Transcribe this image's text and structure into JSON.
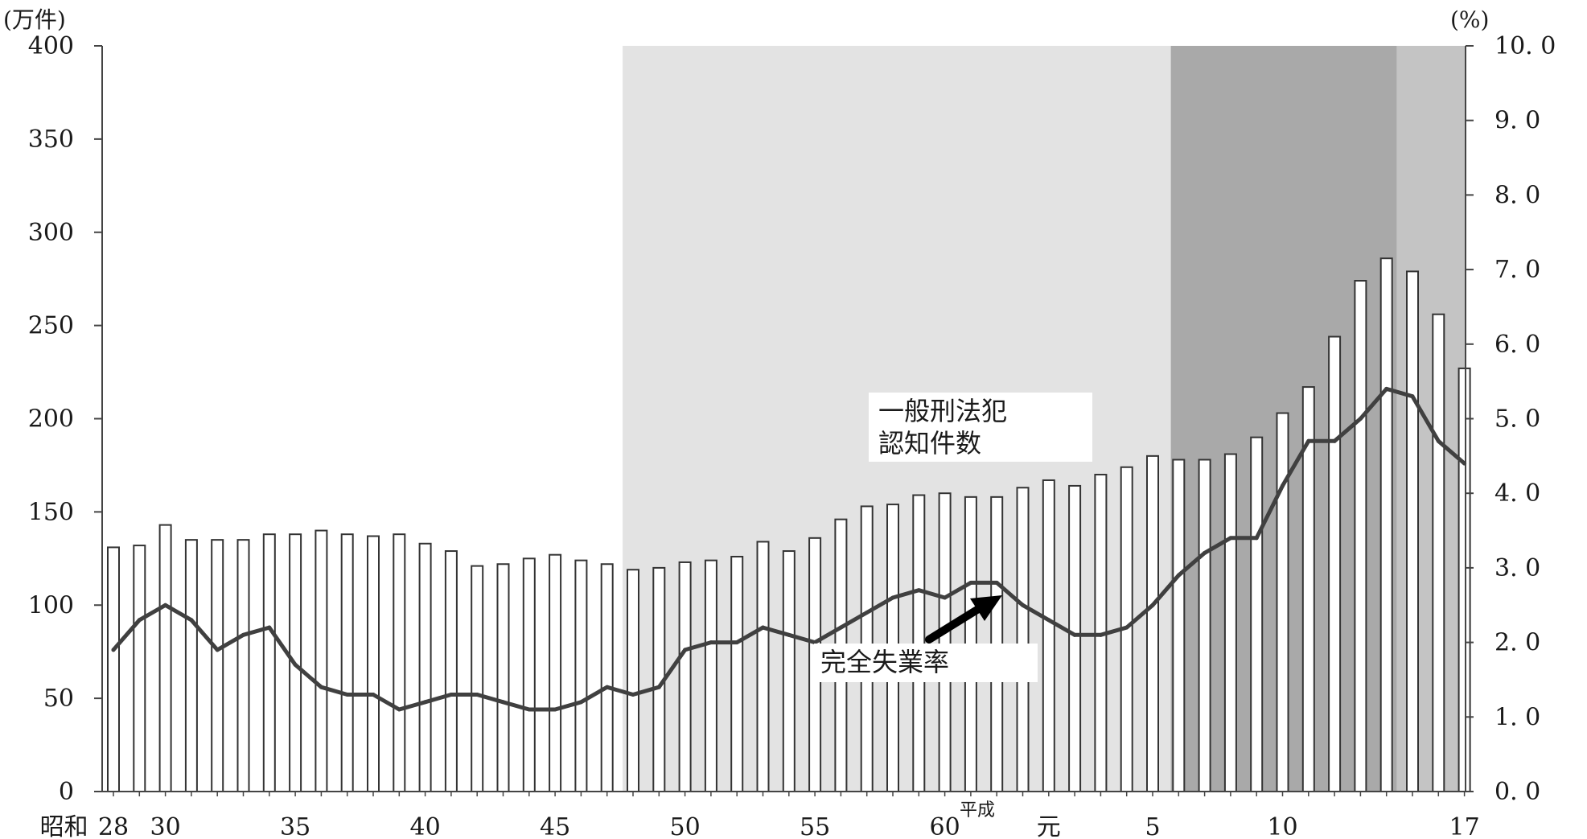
{
  "chart_data": {
    "type": "bar",
    "left_axis": {
      "unit": "(万件)",
      "range": [
        0,
        400
      ],
      "ticks": [
        "0",
        "50",
        "100",
        "150",
        "200",
        "250",
        "300",
        "350",
        "400"
      ]
    },
    "right_axis": {
      "unit": "(%)",
      "range": [
        0,
        10
      ],
      "ticks": [
        "0. 0",
        "1. 0",
        "2. 0",
        "3. 0",
        "4. 0",
        "5. 0",
        "6. 0",
        "7. 0",
        "8. 0",
        "9. 0",
        "10. 0"
      ]
    },
    "x_labels": [
      {
        "text": "昭和",
        "index": -1.9
      },
      {
        "text": "28",
        "index": 0
      },
      {
        "text": "30",
        "index": 2
      },
      {
        "text": "35",
        "index": 7
      },
      {
        "text": "40",
        "index": 12
      },
      {
        "text": "45",
        "index": 17
      },
      {
        "text": "50",
        "index": 22
      },
      {
        "text": "55",
        "index": 27
      },
      {
        "text": "60",
        "index": 32
      },
      {
        "text": "平成",
        "index": 33.25,
        "small": true
      },
      {
        "text": "元",
        "index": 36
      },
      {
        "text": "5",
        "index": 40
      },
      {
        "text": "10",
        "index": 45
      },
      {
        "text": "17",
        "index": 52
      }
    ],
    "bars": {
      "name": "一般刑法犯認知件数",
      "values": [
        131,
        132,
        143,
        135,
        135,
        135,
        138,
        138,
        140,
        138,
        137,
        138,
        133,
        129,
        121,
        122,
        125,
        127,
        124,
        122,
        119,
        120,
        123,
        124,
        126,
        134,
        129,
        136,
        146,
        153,
        154,
        159,
        160,
        158,
        158,
        163,
        167,
        164,
        170,
        174,
        180,
        178,
        178,
        181,
        190,
        203,
        217,
        244,
        274,
        286,
        279,
        256,
        227
      ]
    },
    "line": {
      "name": "完全失業率",
      "values": [
        1.9,
        2.3,
        2.5,
        2.3,
        1.9,
        2.1,
        2.2,
        1.7,
        1.4,
        1.3,
        1.3,
        1.1,
        1.2,
        1.3,
        1.3,
        1.2,
        1.1,
        1.1,
        1.2,
        1.4,
        1.3,
        1.4,
        1.9,
        2.0,
        2.0,
        2.2,
        2.1,
        2.0,
        2.2,
        2.4,
        2.6,
        2.7,
        2.6,
        2.8,
        2.8,
        2.5,
        2.3,
        2.1,
        2.1,
        2.2,
        2.5,
        2.9,
        3.2,
        3.4,
        3.4,
        4.1,
        4.7,
        4.7,
        5.0,
        5.4,
        5.3,
        4.7,
        4.4
      ]
    },
    "shaded_periods": [
      {
        "from_index": 19.6,
        "to_index": 40.7,
        "color": "#e3e3e3"
      },
      {
        "from_index": 40.7,
        "to_index": 49.4,
        "color": "#a9a9a9"
      },
      {
        "from_index": 49.4,
        "to_index": 52.4,
        "color": "#c4c4c4"
      }
    ],
    "annotations": {
      "bar_label": [
        "一般刑法犯",
        "認知件数"
      ],
      "line_label": "完全失業率"
    },
    "colors": {
      "bar_fill": "#ffffff",
      "bar_stroke": "#333333",
      "line": "#404040",
      "axis": "#444444"
    },
    "grid": false,
    "legend": "none"
  }
}
